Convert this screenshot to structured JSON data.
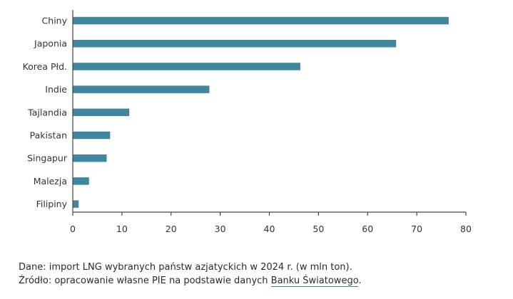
{
  "chart_data": {
    "type": "bar",
    "orientation": "horizontal",
    "categories": [
      "Chiny",
      "Japonia",
      "Korea Płd.",
      "Indie",
      "Tajlandia",
      "Pakistan",
      "Singapur",
      "Malezja",
      "Filipiny"
    ],
    "values": [
      76.5,
      65.8,
      46.3,
      27.8,
      11.5,
      7.6,
      6.9,
      3.3,
      1.2
    ],
    "xlim": [
      0,
      80
    ],
    "xticks": [
      "0",
      "10",
      "20",
      "30",
      "40",
      "50",
      "60",
      "70",
      "80"
    ],
    "bar_color": "#3f86a1",
    "grid": false,
    "legend": "none"
  },
  "caption": {
    "data_text": "Dane: import LNG wybranych państw azjatyckich w 2024 r. (w mln ton).",
    "source_prefix": "Źródło: opracowanie własne PIE na podstawie danych ",
    "source_link": "Banku Światowego",
    "source_suffix": "."
  }
}
